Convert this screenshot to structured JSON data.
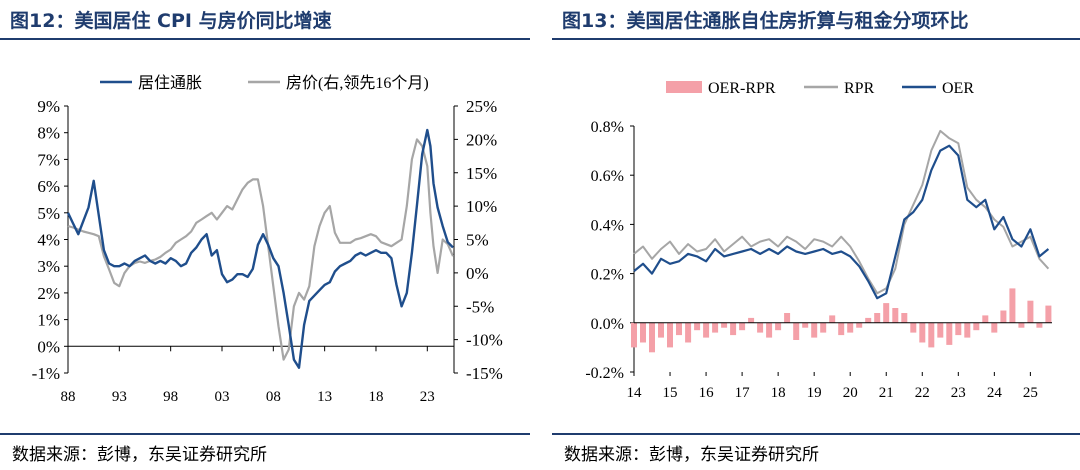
{
  "figures": [
    {
      "title": "图12：美国居住 CPI 与房价同比增速",
      "source": "数据来源：彭博，东吴证券研究所"
    },
    {
      "title": "图13：美国居住通胀自住房折算与租金分项环比",
      "source": "数据来源：彭博，东吴证券研究所"
    }
  ],
  "chart_data": [
    {
      "type": "line",
      "title": "",
      "x_tick_labels": [
        "88",
        "93",
        "98",
        "03",
        "08",
        "13",
        "18",
        "23"
      ],
      "xlim": [
        1988,
        2025.6
      ],
      "y_left": {
        "ticks": [
          "9%",
          "8%",
          "7%",
          "6%",
          "5%",
          "4%",
          "3%",
          "2%",
          "1%",
          "0%",
          "-1%"
        ],
        "ylim": [
          -1,
          9
        ]
      },
      "y_right": {
        "ticks": [
          "25%",
          "20%",
          "15%",
          "10%",
          "5%",
          "0%",
          "-5%",
          "-10%",
          "-15%"
        ],
        "ylim": [
          -15,
          25
        ]
      },
      "legend": {
        "position": "top",
        "items": [
          "居住通胀",
          "房价(右,领先16个月)"
        ]
      },
      "grid": false,
      "series": [
        {
          "name": "居住通胀",
          "axis": "left",
          "color": "#1f4e8c",
          "x": [
            1988,
            1988.5,
            1989,
            1989.5,
            1990,
            1990.5,
            1991,
            1991.5,
            1992,
            1992.5,
            1993,
            1993.5,
            1994,
            1994.5,
            1995,
            1995.5,
            1996,
            1996.5,
            1997,
            1997.5,
            1998,
            1998.5,
            1999,
            1999.5,
            2000,
            2000.5,
            2001,
            2001.5,
            2002,
            2002.5,
            2003,
            2003.5,
            2004,
            2004.5,
            2005,
            2005.5,
            2006,
            2006.5,
            2007,
            2007.5,
            2008,
            2008.5,
            2009,
            2009.5,
            2010,
            2010.5,
            2011,
            2011.5,
            2012,
            2012.5,
            2013,
            2013.5,
            2014,
            2014.5,
            2015,
            2015.5,
            2016,
            2016.5,
            2017,
            2017.5,
            2018,
            2018.5,
            2019,
            2019.5,
            2020,
            2020.5,
            2021,
            2021.5,
            2022,
            2022.5,
            2023,
            2023.3,
            2023.6,
            2024,
            2024.5,
            2025,
            2025.5
          ],
          "values": [
            5.0,
            4.6,
            4.2,
            4.7,
            5.2,
            6.2,
            4.9,
            3.6,
            3.1,
            3.0,
            3.0,
            3.1,
            3.0,
            3.2,
            3.3,
            3.4,
            3.2,
            3.1,
            3.2,
            3.1,
            3.3,
            3.2,
            3.0,
            3.1,
            3.5,
            3.7,
            4.0,
            4.2,
            3.4,
            3.6,
            2.7,
            2.4,
            2.5,
            2.7,
            2.7,
            2.6,
            2.9,
            3.8,
            4.2,
            3.8,
            3.3,
            3.0,
            2.0,
            0.8,
            -0.5,
            -0.8,
            0.8,
            1.7,
            1.9,
            2.1,
            2.3,
            2.4,
            2.8,
            3.0,
            3.1,
            3.2,
            3.4,
            3.5,
            3.4,
            3.5,
            3.6,
            3.5,
            3.5,
            3.3,
            2.3,
            1.5,
            2.0,
            3.5,
            5.3,
            7.2,
            8.1,
            7.5,
            6.1,
            5.2,
            4.5,
            3.9,
            3.7
          ]
        },
        {
          "name": "房价(右,领先16个月)",
          "axis": "right",
          "color": "#a6a6a6",
          "x": [
            1988,
            1988.5,
            1989,
            1989.5,
            1990,
            1990.5,
            1991,
            1991.5,
            1992,
            1992.5,
            1993,
            1993.5,
            1994,
            1994.5,
            1995,
            1995.5,
            1996,
            1996.5,
            1997,
            1997.5,
            1998,
            1998.5,
            1999,
            1999.5,
            2000,
            2000.5,
            2001,
            2001.5,
            2002,
            2002.5,
            2003,
            2003.5,
            2004,
            2004.5,
            2005,
            2005.5,
            2006,
            2006.5,
            2007,
            2007.5,
            2008,
            2008.5,
            2009,
            2009.5,
            2010,
            2010.5,
            2011,
            2011.5,
            2012,
            2012.5,
            2013,
            2013.5,
            2014,
            2014.5,
            2015,
            2015.5,
            2016,
            2016.5,
            2017,
            2017.5,
            2018,
            2018.5,
            2019,
            2019.5,
            2020,
            2020.5,
            2021,
            2021.5,
            2022,
            2022.5,
            2023,
            2023.3,
            2023.6,
            2024,
            2024.5,
            2025,
            2025.5
          ],
          "values": [
            7.0,
            6.8,
            6.5,
            6.2,
            6.0,
            5.8,
            5.5,
            2.5,
            0.5,
            -1.5,
            -2.0,
            0.0,
            1.0,
            1.5,
            1.7,
            1.5,
            1.8,
            2.0,
            2.4,
            3.0,
            3.5,
            4.5,
            5.0,
            5.5,
            6.2,
            7.5,
            8.0,
            8.5,
            9.0,
            8.0,
            9.0,
            10.0,
            9.5,
            11.0,
            12.5,
            13.5,
            14.0,
            14.0,
            10.0,
            4.0,
            -2.0,
            -8.0,
            -13.0,
            -11.5,
            -5.0,
            -3.0,
            -4.0,
            -2.0,
            4.0,
            7.0,
            9.0,
            10.0,
            6.0,
            4.5,
            4.5,
            4.5,
            5.0,
            5.2,
            5.5,
            5.8,
            5.5,
            4.6,
            4.3,
            4.0,
            4.5,
            5.0,
            10.0,
            17.0,
            20.0,
            19.0,
            16.0,
            9.0,
            4.0,
            0.0,
            5.0,
            4.3,
            2.5
          ]
        }
      ]
    },
    {
      "type": "line",
      "title": "",
      "x_tick_labels": [
        "14",
        "15",
        "16",
        "17",
        "18",
        "19",
        "20",
        "21",
        "22",
        "23",
        "24",
        "25"
      ],
      "xlim": [
        2014,
        2025.6
      ],
      "ylim": [
        -0.2,
        0.8
      ],
      "y_ticks": [
        "0.8%",
        "0.6%",
        "0.4%",
        "0.2%",
        "0.0%",
        "-0.2%"
      ],
      "legend": {
        "position": "top",
        "items": [
          "OER-RPR",
          "RPR",
          "OER"
        ]
      },
      "grid": false,
      "series": [
        {
          "name": "OER-RPR",
          "type": "area",
          "color": "#f4a0a8",
          "x": [
            2014,
            2014.25,
            2014.5,
            2014.75,
            2015,
            2015.25,
            2015.5,
            2015.75,
            2016,
            2016.25,
            2016.5,
            2016.75,
            2017,
            2017.25,
            2017.5,
            2017.75,
            2018,
            2018.25,
            2018.5,
            2018.75,
            2019,
            2019.25,
            2019.5,
            2019.75,
            2020,
            2020.25,
            2020.5,
            2020.75,
            2021,
            2021.25,
            2021.5,
            2021.75,
            2022,
            2022.25,
            2022.5,
            2022.75,
            2023,
            2023.25,
            2023.5,
            2023.75,
            2024,
            2024.25,
            2024.5,
            2024.75,
            2025,
            2025.25,
            2025.5
          ],
          "values": [
            -0.1,
            -0.08,
            -0.12,
            -0.06,
            -0.1,
            -0.05,
            -0.08,
            -0.03,
            -0.06,
            -0.04,
            -0.02,
            -0.05,
            -0.03,
            0.02,
            -0.04,
            -0.06,
            -0.03,
            0.04,
            -0.07,
            -0.02,
            -0.06,
            -0.04,
            0.03,
            -0.05,
            -0.04,
            -0.02,
            0.02,
            0.04,
            0.08,
            0.06,
            0.04,
            -0.04,
            -0.08,
            -0.1,
            -0.06,
            -0.09,
            -0.05,
            -0.06,
            -0.03,
            0.03,
            -0.04,
            0.05,
            0.14,
            -0.02,
            0.09,
            -0.02,
            0.07
          ]
        },
        {
          "name": "RPR",
          "color": "#a6a6a6",
          "x": [
            2014,
            2014.25,
            2014.5,
            2014.75,
            2015,
            2015.25,
            2015.5,
            2015.75,
            2016,
            2016.25,
            2016.5,
            2016.75,
            2017,
            2017.25,
            2017.5,
            2017.75,
            2018,
            2018.25,
            2018.5,
            2018.75,
            2019,
            2019.25,
            2019.5,
            2019.75,
            2020,
            2020.25,
            2020.5,
            2020.75,
            2021,
            2021.25,
            2021.5,
            2021.75,
            2022,
            2022.25,
            2022.5,
            2022.75,
            2023,
            2023.25,
            2023.5,
            2023.75,
            2024,
            2024.25,
            2024.5,
            2024.75,
            2025,
            2025.25,
            2025.5
          ],
          "values": [
            0.28,
            0.31,
            0.26,
            0.3,
            0.33,
            0.28,
            0.32,
            0.29,
            0.3,
            0.34,
            0.29,
            0.32,
            0.35,
            0.31,
            0.33,
            0.34,
            0.31,
            0.35,
            0.33,
            0.3,
            0.34,
            0.33,
            0.31,
            0.35,
            0.31,
            0.25,
            0.18,
            0.12,
            0.14,
            0.22,
            0.4,
            0.48,
            0.56,
            0.7,
            0.78,
            0.75,
            0.73,
            0.55,
            0.5,
            0.47,
            0.42,
            0.39,
            0.31,
            0.33,
            0.35,
            0.26,
            0.22
          ]
        },
        {
          "name": "OER",
          "color": "#1f4e8c",
          "x": [
            2014,
            2014.25,
            2014.5,
            2014.75,
            2015,
            2015.25,
            2015.5,
            2015.75,
            2016,
            2016.25,
            2016.5,
            2016.75,
            2017,
            2017.25,
            2017.5,
            2017.75,
            2018,
            2018.25,
            2018.5,
            2018.75,
            2019,
            2019.25,
            2019.5,
            2019.75,
            2020,
            2020.25,
            2020.5,
            2020.75,
            2021,
            2021.25,
            2021.5,
            2021.75,
            2022,
            2022.25,
            2022.5,
            2022.75,
            2023,
            2023.25,
            2023.5,
            2023.75,
            2024,
            2024.25,
            2024.5,
            2024.75,
            2025,
            2025.25,
            2025.5
          ],
          "values": [
            0.21,
            0.24,
            0.2,
            0.26,
            0.24,
            0.25,
            0.28,
            0.27,
            0.25,
            0.3,
            0.27,
            0.28,
            0.29,
            0.3,
            0.28,
            0.3,
            0.28,
            0.31,
            0.29,
            0.28,
            0.29,
            0.3,
            0.28,
            0.29,
            0.27,
            0.23,
            0.17,
            0.1,
            0.12,
            0.27,
            0.42,
            0.45,
            0.5,
            0.62,
            0.7,
            0.72,
            0.68,
            0.5,
            0.47,
            0.5,
            0.38,
            0.43,
            0.34,
            0.31,
            0.38,
            0.27,
            0.3
          ]
        }
      ]
    }
  ]
}
